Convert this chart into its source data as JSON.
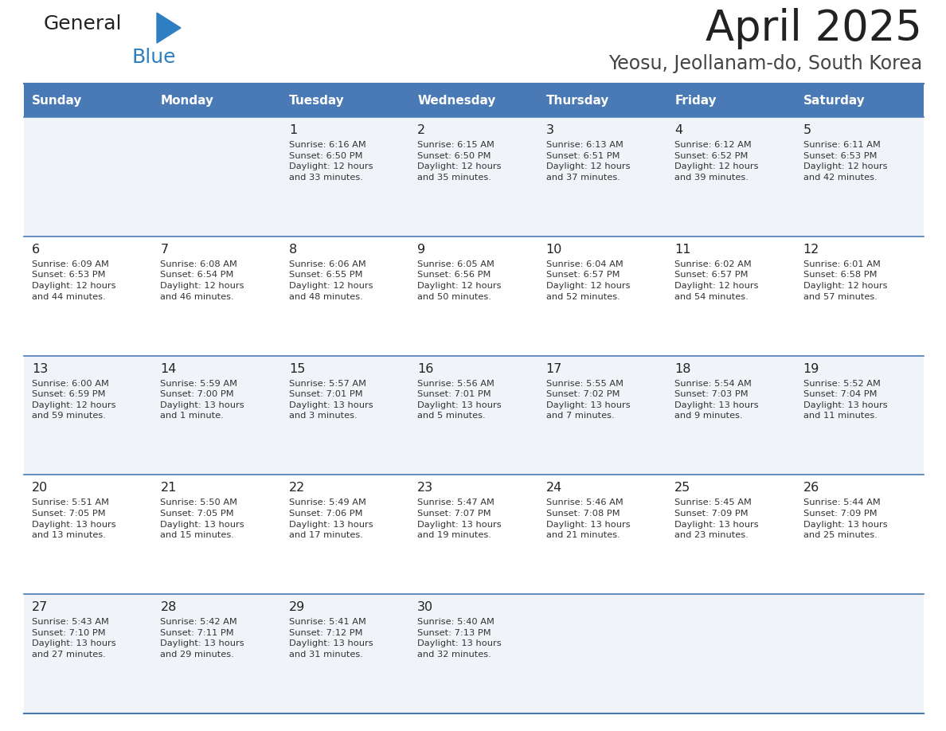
{
  "title": "April 2025",
  "subtitle": "Yeosu, Jeollanam-do, South Korea",
  "header_bg_color": "#4a7ab5",
  "header_text_color": "#ffffff",
  "weekdays": [
    "Sunday",
    "Monday",
    "Tuesday",
    "Wednesday",
    "Thursday",
    "Friday",
    "Saturday"
  ],
  "row_bg_light": "#f0f4f8",
  "row_bg_white": "#ffffff",
  "cell_border_color": "#4a7ab5",
  "day_number_color": "#222222",
  "info_text_color": "#333333",
  "title_color": "#222222",
  "subtitle_color": "#444444",
  "logo_general_color": "#222222",
  "logo_blue_color": "#2e7fc2",
  "calendar_data": [
    [
      {
        "day": null,
        "info": ""
      },
      {
        "day": null,
        "info": ""
      },
      {
        "day": 1,
        "info": "Sunrise: 6:16 AM\nSunset: 6:50 PM\nDaylight: 12 hours\nand 33 minutes."
      },
      {
        "day": 2,
        "info": "Sunrise: 6:15 AM\nSunset: 6:50 PM\nDaylight: 12 hours\nand 35 minutes."
      },
      {
        "day": 3,
        "info": "Sunrise: 6:13 AM\nSunset: 6:51 PM\nDaylight: 12 hours\nand 37 minutes."
      },
      {
        "day": 4,
        "info": "Sunrise: 6:12 AM\nSunset: 6:52 PM\nDaylight: 12 hours\nand 39 minutes."
      },
      {
        "day": 5,
        "info": "Sunrise: 6:11 AM\nSunset: 6:53 PM\nDaylight: 12 hours\nand 42 minutes."
      }
    ],
    [
      {
        "day": 6,
        "info": "Sunrise: 6:09 AM\nSunset: 6:53 PM\nDaylight: 12 hours\nand 44 minutes."
      },
      {
        "day": 7,
        "info": "Sunrise: 6:08 AM\nSunset: 6:54 PM\nDaylight: 12 hours\nand 46 minutes."
      },
      {
        "day": 8,
        "info": "Sunrise: 6:06 AM\nSunset: 6:55 PM\nDaylight: 12 hours\nand 48 minutes."
      },
      {
        "day": 9,
        "info": "Sunrise: 6:05 AM\nSunset: 6:56 PM\nDaylight: 12 hours\nand 50 minutes."
      },
      {
        "day": 10,
        "info": "Sunrise: 6:04 AM\nSunset: 6:57 PM\nDaylight: 12 hours\nand 52 minutes."
      },
      {
        "day": 11,
        "info": "Sunrise: 6:02 AM\nSunset: 6:57 PM\nDaylight: 12 hours\nand 54 minutes."
      },
      {
        "day": 12,
        "info": "Sunrise: 6:01 AM\nSunset: 6:58 PM\nDaylight: 12 hours\nand 57 minutes."
      }
    ],
    [
      {
        "day": 13,
        "info": "Sunrise: 6:00 AM\nSunset: 6:59 PM\nDaylight: 12 hours\nand 59 minutes."
      },
      {
        "day": 14,
        "info": "Sunrise: 5:59 AM\nSunset: 7:00 PM\nDaylight: 13 hours\nand 1 minute."
      },
      {
        "day": 15,
        "info": "Sunrise: 5:57 AM\nSunset: 7:01 PM\nDaylight: 13 hours\nand 3 minutes."
      },
      {
        "day": 16,
        "info": "Sunrise: 5:56 AM\nSunset: 7:01 PM\nDaylight: 13 hours\nand 5 minutes."
      },
      {
        "day": 17,
        "info": "Sunrise: 5:55 AM\nSunset: 7:02 PM\nDaylight: 13 hours\nand 7 minutes."
      },
      {
        "day": 18,
        "info": "Sunrise: 5:54 AM\nSunset: 7:03 PM\nDaylight: 13 hours\nand 9 minutes."
      },
      {
        "day": 19,
        "info": "Sunrise: 5:52 AM\nSunset: 7:04 PM\nDaylight: 13 hours\nand 11 minutes."
      }
    ],
    [
      {
        "day": 20,
        "info": "Sunrise: 5:51 AM\nSunset: 7:05 PM\nDaylight: 13 hours\nand 13 minutes."
      },
      {
        "day": 21,
        "info": "Sunrise: 5:50 AM\nSunset: 7:05 PM\nDaylight: 13 hours\nand 15 minutes."
      },
      {
        "day": 22,
        "info": "Sunrise: 5:49 AM\nSunset: 7:06 PM\nDaylight: 13 hours\nand 17 minutes."
      },
      {
        "day": 23,
        "info": "Sunrise: 5:47 AM\nSunset: 7:07 PM\nDaylight: 13 hours\nand 19 minutes."
      },
      {
        "day": 24,
        "info": "Sunrise: 5:46 AM\nSunset: 7:08 PM\nDaylight: 13 hours\nand 21 minutes."
      },
      {
        "day": 25,
        "info": "Sunrise: 5:45 AM\nSunset: 7:09 PM\nDaylight: 13 hours\nand 23 minutes."
      },
      {
        "day": 26,
        "info": "Sunrise: 5:44 AM\nSunset: 7:09 PM\nDaylight: 13 hours\nand 25 minutes."
      }
    ],
    [
      {
        "day": 27,
        "info": "Sunrise: 5:43 AM\nSunset: 7:10 PM\nDaylight: 13 hours\nand 27 minutes."
      },
      {
        "day": 28,
        "info": "Sunrise: 5:42 AM\nSunset: 7:11 PM\nDaylight: 13 hours\nand 29 minutes."
      },
      {
        "day": 29,
        "info": "Sunrise: 5:41 AM\nSunset: 7:12 PM\nDaylight: 13 hours\nand 31 minutes."
      },
      {
        "day": 30,
        "info": "Sunrise: 5:40 AM\nSunset: 7:13 PM\nDaylight: 13 hours\nand 32 minutes."
      },
      {
        "day": null,
        "info": ""
      },
      {
        "day": null,
        "info": ""
      },
      {
        "day": null,
        "info": ""
      }
    ]
  ],
  "fig_width": 11.88,
  "fig_height": 9.18,
  "dpi": 100
}
